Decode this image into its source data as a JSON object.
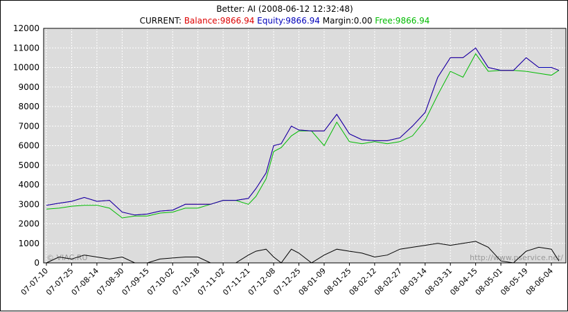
{
  "chart_data": {
    "type": "line",
    "title": "Better: AI (2008-06-12 12:32:48)",
    "subtitle": {
      "prefix": "CURRENT: ",
      "items": [
        {
          "text": "Balance:9866.94",
          "color": "#dd0000"
        },
        {
          "text": "Equity:9866.94",
          "color": "#0000bb"
        },
        {
          "text": "Margin:0.00",
          "color": "#000000"
        },
        {
          "text": "Free:9866.94",
          "color": "#00bb00"
        }
      ]
    },
    "watermark_left": "© VIAC.RU",
    "watermark_right": "http://www.pservice.net/",
    "ylim": [
      0,
      12000
    ],
    "yticks": [
      0,
      1000,
      2000,
      3000,
      4000,
      5000,
      6000,
      7000,
      8000,
      9000,
      10000,
      11000,
      12000
    ],
    "xticks": [
      "07-07-10",
      "07-07-25",
      "07-08-14",
      "07-08-30",
      "07-09-15",
      "07-10-02",
      "07-10-18",
      "07-11-02",
      "07-11-21",
      "07-12-08",
      "07-12-25",
      "08-01-09",
      "08-01-25",
      "08-02-12",
      "08-02-27",
      "08-03-14",
      "08-03-31",
      "08-04-15",
      "08-05-01",
      "08-05-19",
      "08-06-04"
    ],
    "grid": true,
    "background_color": "#dcdcdc",
    "series": [
      {
        "name": "Balance",
        "color": "#dd0000",
        "points": [
          [
            0,
            2950
          ],
          [
            0.5,
            3050
          ],
          [
            1.0,
            3150
          ],
          [
            1.5,
            3350
          ],
          [
            2.0,
            3150
          ],
          [
            2.5,
            3200
          ],
          [
            3.0,
            2600
          ],
          [
            3.5,
            2450
          ],
          [
            4.0,
            2500
          ],
          [
            4.5,
            2650
          ],
          [
            5.0,
            2700
          ],
          [
            5.5,
            3000
          ],
          [
            6.0,
            3000
          ],
          [
            6.5,
            3000
          ],
          [
            7.0,
            3200
          ],
          [
            7.5,
            3200
          ],
          [
            8.0,
            3300
          ],
          [
            8.3,
            3800
          ],
          [
            8.7,
            4600
          ],
          [
            9.0,
            6000
          ],
          [
            9.3,
            6100
          ],
          [
            9.7,
            7000
          ],
          [
            10.0,
            6800
          ],
          [
            10.5,
            6750
          ],
          [
            11.0,
            6750
          ],
          [
            11.5,
            7600
          ],
          [
            12.0,
            6600
          ],
          [
            12.5,
            6300
          ],
          [
            13.0,
            6250
          ],
          [
            13.5,
            6250
          ],
          [
            14.0,
            6400
          ],
          [
            14.5,
            7000
          ],
          [
            15.0,
            7700
          ],
          [
            15.5,
            9500
          ],
          [
            16.0,
            10500
          ],
          [
            16.5,
            10500
          ],
          [
            17.0,
            11000
          ],
          [
            17.5,
            10000
          ],
          [
            18.0,
            9850
          ],
          [
            18.5,
            9850
          ],
          [
            19.0,
            10500
          ],
          [
            19.5,
            10000
          ],
          [
            20.0,
            10000
          ],
          [
            20.3,
            9850
          ]
        ]
      },
      {
        "name": "Equity",
        "color": "#0000bb",
        "points": [
          [
            0,
            2950
          ],
          [
            0.5,
            3050
          ],
          [
            1.0,
            3150
          ],
          [
            1.5,
            3350
          ],
          [
            2.0,
            3150
          ],
          [
            2.5,
            3200
          ],
          [
            3.0,
            2600
          ],
          [
            3.5,
            2450
          ],
          [
            4.0,
            2500
          ],
          [
            4.5,
            2650
          ],
          [
            5.0,
            2700
          ],
          [
            5.5,
            3000
          ],
          [
            6.0,
            3000
          ],
          [
            6.5,
            3000
          ],
          [
            7.0,
            3200
          ],
          [
            7.5,
            3200
          ],
          [
            8.0,
            3300
          ],
          [
            8.3,
            3800
          ],
          [
            8.7,
            4600
          ],
          [
            9.0,
            6000
          ],
          [
            9.3,
            6100
          ],
          [
            9.7,
            7000
          ],
          [
            10.0,
            6800
          ],
          [
            10.5,
            6750
          ],
          [
            11.0,
            6750
          ],
          [
            11.5,
            7600
          ],
          [
            12.0,
            6600
          ],
          [
            12.5,
            6300
          ],
          [
            13.0,
            6250
          ],
          [
            13.5,
            6250
          ],
          [
            14.0,
            6400
          ],
          [
            14.5,
            7000
          ],
          [
            15.0,
            7700
          ],
          [
            15.5,
            9500
          ],
          [
            16.0,
            10500
          ],
          [
            16.5,
            10500
          ],
          [
            17.0,
            11000
          ],
          [
            17.5,
            10000
          ],
          [
            18.0,
            9850
          ],
          [
            18.5,
            9850
          ],
          [
            19.0,
            10500
          ],
          [
            19.5,
            10000
          ],
          [
            20.0,
            10000
          ],
          [
            20.3,
            9850
          ]
        ]
      },
      {
        "name": "Free",
        "color": "#00bb00",
        "points": [
          [
            0,
            2750
          ],
          [
            0.5,
            2800
          ],
          [
            1.0,
            2900
          ],
          [
            1.5,
            2950
          ],
          [
            2.0,
            2950
          ],
          [
            2.5,
            2800
          ],
          [
            3.0,
            2300
          ],
          [
            3.5,
            2400
          ],
          [
            4.0,
            2400
          ],
          [
            4.5,
            2550
          ],
          [
            5.0,
            2600
          ],
          [
            5.5,
            2800
          ],
          [
            6.0,
            2800
          ],
          [
            6.5,
            3000
          ],
          [
            7.0,
            3200
          ],
          [
            7.5,
            3200
          ],
          [
            8.0,
            3000
          ],
          [
            8.3,
            3400
          ],
          [
            8.7,
            4300
          ],
          [
            9.0,
            5700
          ],
          [
            9.3,
            5900
          ],
          [
            9.7,
            6500
          ],
          [
            10.0,
            6750
          ],
          [
            10.5,
            6750
          ],
          [
            11.0,
            6000
          ],
          [
            11.5,
            7200
          ],
          [
            12.0,
            6200
          ],
          [
            12.5,
            6100
          ],
          [
            13.0,
            6200
          ],
          [
            13.5,
            6100
          ],
          [
            14.0,
            6200
          ],
          [
            14.5,
            6500
          ],
          [
            15.0,
            7300
          ],
          [
            15.5,
            8600
          ],
          [
            16.0,
            9800
          ],
          [
            16.5,
            9500
          ],
          [
            17.0,
            10700
          ],
          [
            17.5,
            9800
          ],
          [
            18.0,
            9850
          ],
          [
            18.5,
            9850
          ],
          [
            19.0,
            9800
          ],
          [
            19.5,
            9700
          ],
          [
            20.0,
            9600
          ],
          [
            20.3,
            9850
          ]
        ]
      },
      {
        "name": "Margin",
        "color": "#000000",
        "points": [
          [
            0,
            0
          ],
          [
            0.5,
            300
          ],
          [
            1.0,
            200
          ],
          [
            1.5,
            400
          ],
          [
            2.0,
            300
          ],
          [
            2.5,
            200
          ],
          [
            3.0,
            300
          ],
          [
            3.5,
            0
          ],
          [
            4.0,
            0
          ],
          [
            4.5,
            200
          ],
          [
            5.0,
            250
          ],
          [
            5.5,
            300
          ],
          [
            6.0,
            300
          ],
          [
            6.5,
            0
          ],
          [
            7.0,
            0
          ],
          [
            7.5,
            0
          ],
          [
            8.0,
            400
          ],
          [
            8.3,
            600
          ],
          [
            8.7,
            700
          ],
          [
            9.0,
            300
          ],
          [
            9.3,
            0
          ],
          [
            9.7,
            700
          ],
          [
            10.0,
            500
          ],
          [
            10.5,
            0
          ],
          [
            11.0,
            400
          ],
          [
            11.5,
            700
          ],
          [
            12.0,
            600
          ],
          [
            12.5,
            500
          ],
          [
            13.0,
            300
          ],
          [
            13.5,
            400
          ],
          [
            14.0,
            700
          ],
          [
            14.5,
            800
          ],
          [
            15.0,
            900
          ],
          [
            15.5,
            1000
          ],
          [
            16.0,
            900
          ],
          [
            16.5,
            1000
          ],
          [
            17.0,
            1100
          ],
          [
            17.5,
            800
          ],
          [
            18.0,
            100
          ],
          [
            18.5,
            0
          ],
          [
            19.0,
            600
          ],
          [
            19.5,
            800
          ],
          [
            20.0,
            700
          ],
          [
            20.3,
            100
          ]
        ]
      }
    ]
  }
}
